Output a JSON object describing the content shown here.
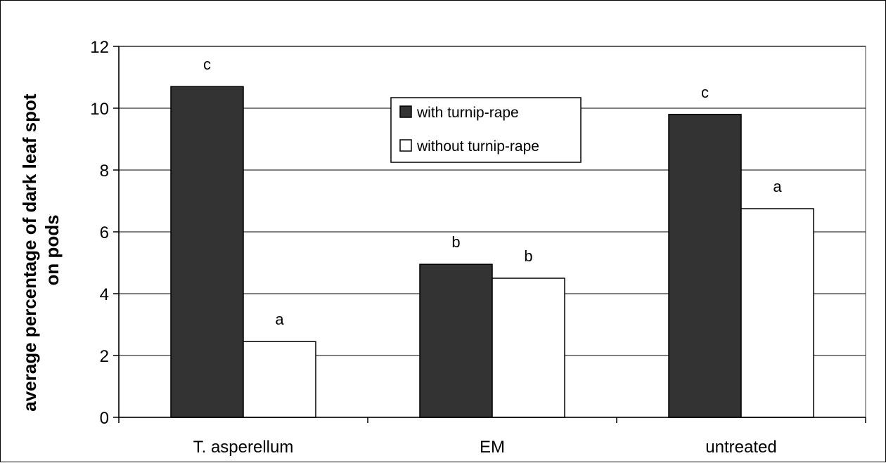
{
  "chart_data": {
    "type": "bar",
    "title": "",
    "xlabel": "",
    "ylabel_lines": [
      "average percentage of dark leaf spot",
      "on pods"
    ],
    "ylim": [
      0,
      12
    ],
    "yticks": [
      "0",
      "2",
      "4",
      "6",
      "8",
      "10",
      "12"
    ],
    "grid": true,
    "legend_position": "top-center",
    "categories": [
      "T. asperellum",
      "EM",
      "untreated"
    ],
    "series": [
      {
        "name": "with turnip-rape",
        "color": "#333333",
        "values": [
          10.7,
          4.95,
          9.8
        ],
        "labels": [
          "c",
          "b",
          "c"
        ]
      },
      {
        "name": "without turnip-rape",
        "color": "#ffffff",
        "values": [
          2.45,
          4.5,
          6.75
        ],
        "labels": [
          "a",
          "b",
          "a"
        ]
      }
    ]
  }
}
